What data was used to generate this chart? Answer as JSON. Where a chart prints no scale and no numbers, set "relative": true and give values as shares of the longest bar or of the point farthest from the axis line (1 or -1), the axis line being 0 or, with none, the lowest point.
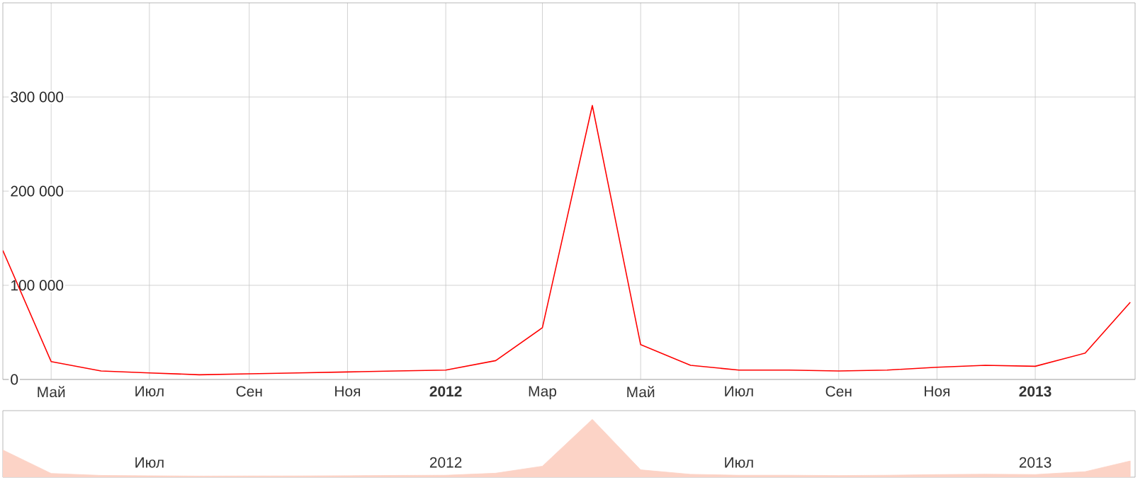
{
  "chart_data": [
    {
      "type": "line",
      "x": [
        "2011-04",
        "2011-05",
        "2011-06",
        "2011-07",
        "2011-08",
        "2011-09",
        "2011-10",
        "2011-11",
        "2011-12",
        "2012-01",
        "2012-02",
        "2012-03",
        "2012-04",
        "2012-05",
        "2012-06",
        "2012-07",
        "2012-08",
        "2012-09",
        "2012-10",
        "2012-11",
        "2012-12",
        "2013-01",
        "2013-02",
        "2013-03"
      ],
      "values": [
        137000,
        19000,
        9000,
        7000,
        5000,
        6000,
        7000,
        8000,
        9000,
        10000,
        20000,
        55000,
        291000,
        37000,
        15000,
        10000,
        10000,
        9000,
        10000,
        13000,
        15000,
        14000,
        28000,
        82000
      ],
      "color": "#ff0000",
      "xlim": [
        "2011-04-01",
        "2013-03-04"
      ],
      "xticks": [
        {
          "value": "2011-05",
          "label": "Май"
        },
        {
          "value": "2011-07",
          "label": "Июл"
        },
        {
          "value": "2011-09",
          "label": "Сен"
        },
        {
          "value": "2011-11",
          "label": "Ноя"
        },
        {
          "value": "2012-01",
          "label": "**2012**"
        },
        {
          "value": "2012-03",
          "label": "Мар"
        },
        {
          "value": "2012-05",
          "label": "Май"
        },
        {
          "value": "2012-07",
          "label": "Июл"
        },
        {
          "value": "2012-09",
          "label": "Сен"
        },
        {
          "value": "2012-11",
          "label": "Ноя"
        },
        {
          "value": "2013-01",
          "label": "**2013**"
        }
      ],
      "ylim": [
        0,
        400000
      ],
      "yticks": [
        0,
        {
          "value": 100000,
          "label": "100 000"
        },
        {
          "value": 200000,
          "label": "200 000"
        },
        {
          "value": 300000,
          "label": "300 000"
        }
      ],
      "grid": true
    },
    {
      "type": "area",
      "relative": true,
      "x": [
        "2011-04",
        "2011-05",
        "2011-06",
        "2011-07",
        "2011-08",
        "2011-09",
        "2011-10",
        "2011-11",
        "2011-12",
        "2012-01",
        "2012-02",
        "2012-03",
        "2012-04",
        "2012-05",
        "2012-06",
        "2012-07",
        "2012-08",
        "2012-09",
        "2012-10",
        "2012-11",
        "2012-12",
        "2013-01",
        "2013-02",
        "2013-03"
      ],
      "values": [
        0.47,
        0.065,
        0.031,
        0.024,
        0.019,
        0.021,
        0.022,
        0.026,
        0.031,
        0.034,
        0.069,
        0.19,
        1,
        0.127,
        0.05,
        0.034,
        0.034,
        0.029,
        0.034,
        0.045,
        0.052,
        0.046,
        0.096,
        0.28
      ],
      "color": "#fcd3c6",
      "xlim": [
        "2011-04-01",
        "2013-03-04"
      ],
      "xticks": [
        {
          "value": "2011-07",
          "label": "Июл"
        },
        {
          "value": "2012-01",
          "label": "2012"
        },
        {
          "value": "2012-07",
          "label": "Июл"
        },
        {
          "value": "2013-01",
          "label": "2013"
        }
      ]
    }
  ]
}
